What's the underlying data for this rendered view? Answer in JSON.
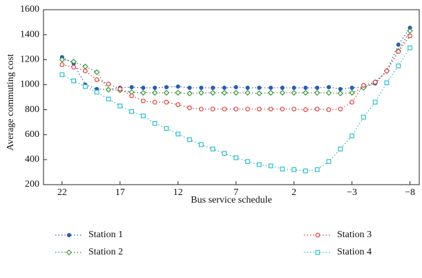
{
  "chart_data": {
    "type": "line",
    "xlabel": "Bus service schedule",
    "ylabel": "Average commuting cost",
    "x": [
      22,
      21,
      20,
      19,
      18,
      17,
      16,
      15,
      14,
      13,
      12,
      11,
      10,
      9,
      8,
      7,
      6,
      5,
      4,
      3,
      2,
      1,
      0,
      -1,
      -2,
      -3,
      -4,
      -5,
      -6,
      -7,
      -8
    ],
    "series": [
      {
        "name": "Station 1",
        "color": "#2a5db0",
        "marker": "filled-circle",
        "values": [
          1220,
          1170,
          1000,
          965,
          960,
          975,
          980,
          975,
          975,
          980,
          985,
          975,
          975,
          975,
          975,
          980,
          975,
          975,
          975,
          975,
          975,
          975,
          975,
          980,
          965,
          975,
          980,
          1010,
          1110,
          1320,
          1455
        ]
      },
      {
        "name": "Station 2",
        "color": "#2e8b2e",
        "marker": "diamond",
        "values": [
          1200,
          1185,
          1145,
          1100,
          960,
          955,
          940,
          935,
          935,
          935,
          935,
          930,
          935,
          935,
          935,
          935,
          935,
          930,
          935,
          935,
          935,
          935,
          935,
          935,
          930,
          935,
          975,
          1020,
          1110,
          1270,
          1430
        ]
      },
      {
        "name": "Station 3",
        "color": "#e03030",
        "marker": "circle",
        "values": [
          1160,
          1140,
          1110,
          1040,
          1005,
          965,
          910,
          870,
          860,
          860,
          840,
          815,
          805,
          805,
          805,
          805,
          805,
          805,
          805,
          805,
          805,
          800,
          805,
          800,
          805,
          860,
          995,
          1020,
          1110,
          1265,
          1390
        ]
      },
      {
        "name": "Station 4",
        "color": "#20b8c0",
        "marker": "square",
        "values": [
          1080,
          1030,
          985,
          940,
          885,
          830,
          785,
          750,
          690,
          650,
          605,
          560,
          520,
          485,
          450,
          415,
          385,
          360,
          350,
          325,
          320,
          310,
          320,
          385,
          485,
          590,
          740,
          860,
          1015,
          1150,
          1295
        ]
      }
    ],
    "xlim": [
      23.6,
      -8.8
    ],
    "xticks": [
      22,
      17,
      12,
      7,
      2,
      {
        "value": -3,
        "label": "−3"
      },
      {
        "value": -8,
        "label": "−8"
      }
    ],
    "ylim": [
      200,
      1600
    ],
    "yticks": [
      200,
      400,
      600,
      800,
      1000,
      1200,
      1400,
      1600
    ]
  }
}
